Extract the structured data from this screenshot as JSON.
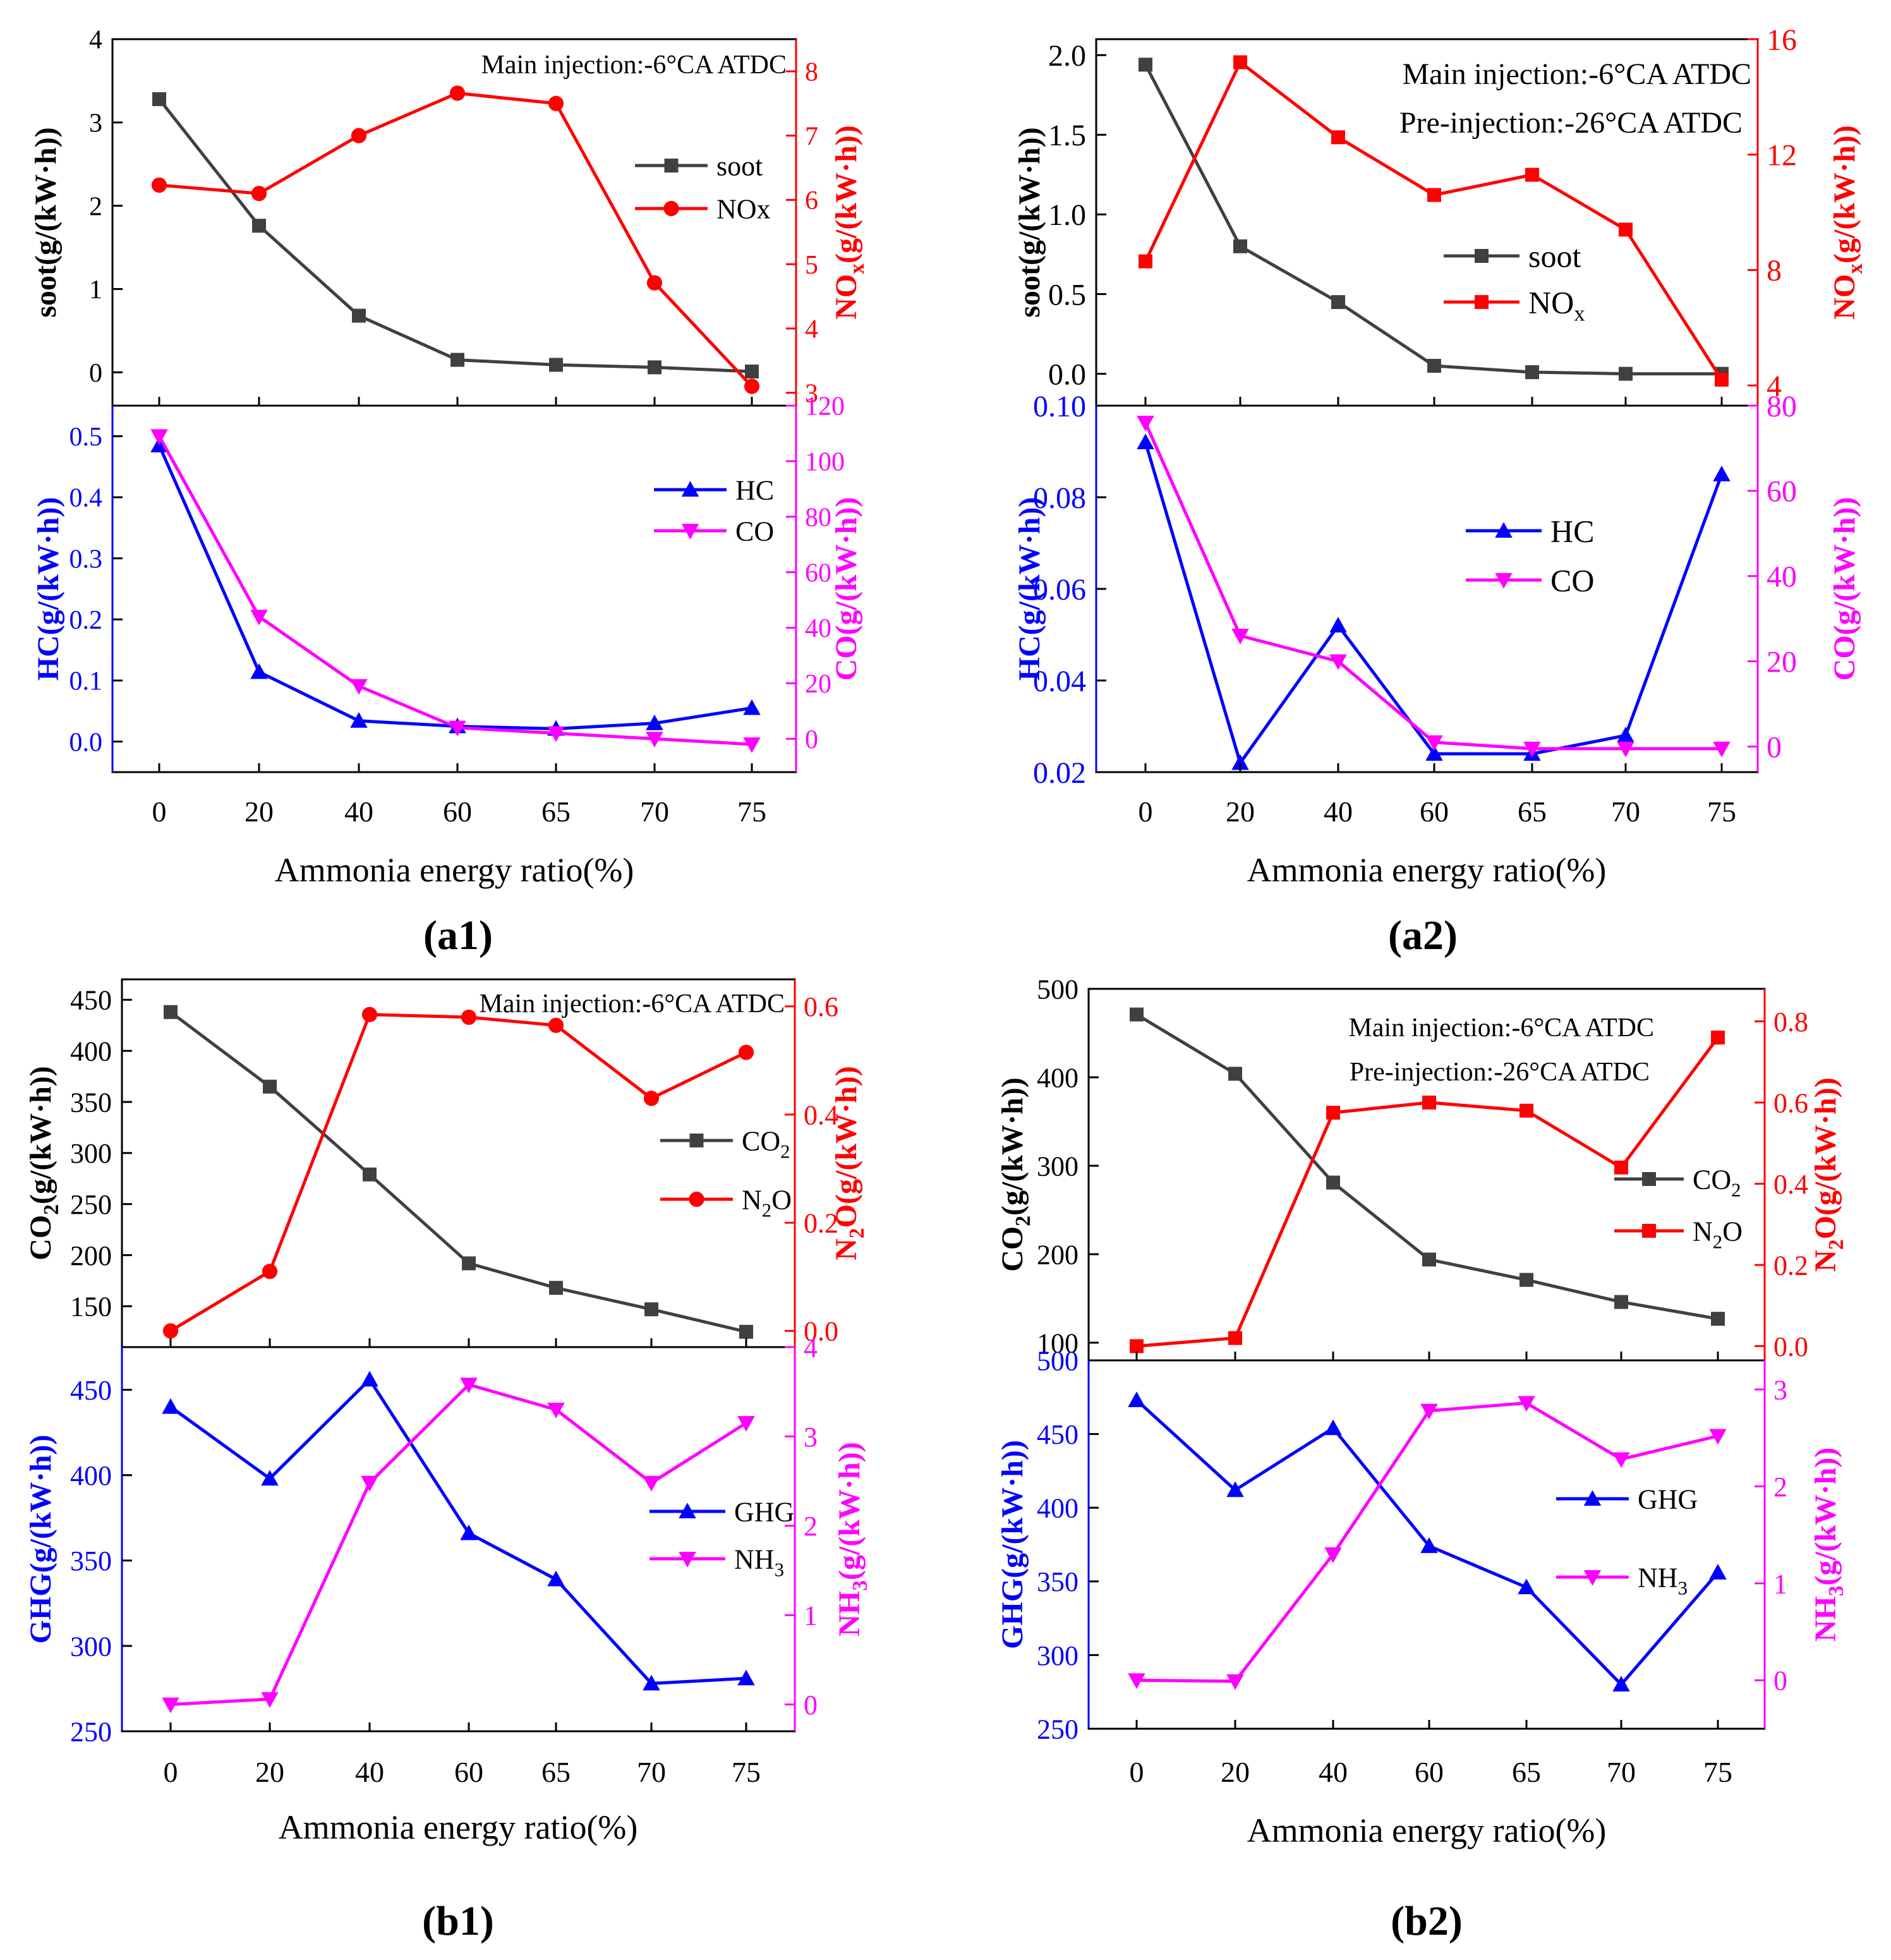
{
  "colors": {
    "soot": "#404040",
    "nox": "#ff0000",
    "hc": "#0000ff",
    "co": "#ff00ff",
    "co2": "#404040",
    "n2o": "#ff0000",
    "ghg": "#0000ff",
    "nh3": "#ff00ff"
  },
  "chart_data": [
    {
      "id": "a1",
      "label": "(a1)",
      "type": "line",
      "xlabel": "Ammonia energy ratio(%)",
      "categories": [
        "0",
        "20",
        "40",
        "60",
        "65",
        "70",
        "75"
      ],
      "annotations": [
        "Main injection:-6°CA ATDC"
      ],
      "panels": [
        {
          "left_axis": {
            "label": "soot(g/(kW·h))",
            "ylim": [
              -0.4,
              4
            ],
            "ticks": [
              0,
              1,
              2,
              3,
              4
            ],
            "color": "#000000"
          },
          "right_axis": {
            "label_main": "NO",
            "label_sub": "x",
            "label_rest": "(g/(kW·h))",
            "ylim": [
              2.8,
              8.5
            ],
            "ticks": [
              3,
              4,
              5,
              6,
              7,
              8
            ],
            "color": "#ff0000"
          },
          "series": [
            {
              "name": "soot",
              "axis": "left",
              "marker": "square",
              "color": "#404040",
              "values": [
                3.28,
                1.76,
                0.68,
                0.15,
                0.09,
                0.06,
                0.01
              ]
            },
            {
              "name": "NOx",
              "axis": "right",
              "marker": "circle",
              "color": "#ff0000",
              "values": [
                6.23,
                6.1,
                7.0,
                7.66,
                7.5,
                4.71,
                3.1
              ]
            }
          ],
          "legend": [
            {
              "text": "soot",
              "sub": ""
            },
            {
              "text": "NOx",
              "sub": ""
            }
          ]
        },
        {
          "left_axis": {
            "label": "HC(g/(kW·h))",
            "ylim": [
              -0.05,
              0.55
            ],
            "ticks": [
              0.0,
              0.1,
              0.2,
              0.3,
              0.4,
              0.5
            ],
            "color": "#0000ff"
          },
          "right_axis": {
            "label_main": "CO(g/(kW·h))",
            "label_sub": "",
            "label_rest": "",
            "ylim": [
              -12,
              120
            ],
            "ticks": [
              0,
              20,
              40,
              60,
              80,
              100,
              120
            ],
            "color": "#ff00ff"
          },
          "series": [
            {
              "name": "HC",
              "axis": "left",
              "marker": "triangle-up",
              "color": "#0000ff",
              "values": [
                0.485,
                0.114,
                0.034,
                0.025,
                0.021,
                0.03,
                0.055
              ]
            },
            {
              "name": "CO",
              "axis": "right",
              "marker": "triangle-down",
              "color": "#ff00ff",
              "values": [
                109,
                44,
                19,
                4,
                2,
                0,
                -2
              ]
            }
          ],
          "legend": [
            {
              "text": "HC",
              "sub": ""
            },
            {
              "text": "CO",
              "sub": ""
            }
          ]
        }
      ]
    },
    {
      "id": "a2",
      "label": "(a2)",
      "type": "line",
      "xlabel": "Ammonia energy ratio(%)",
      "categories": [
        "0",
        "20",
        "40",
        "60",
        "65",
        "70",
        "75"
      ],
      "annotations": [
        "Main injection:-6°CA ATDC",
        "Pre-injection:-26°CA ATDC"
      ],
      "panels": [
        {
          "left_axis": {
            "label": "soot(g/(kW·h))",
            "ylim": [
              -0.2,
              2.1
            ],
            "ticks": [
              0.0,
              0.5,
              1.0,
              1.5,
              2.0
            ],
            "color": "#000000"
          },
          "right_axis": {
            "label_main": "NO",
            "label_sub": "x",
            "label_rest": "(g/(kW·h))",
            "ylim": [
              3.3,
              16
            ],
            "ticks": [
              4,
              8,
              12,
              16
            ],
            "color": "#ff0000"
          },
          "series": [
            {
              "name": "soot",
              "axis": "left",
              "marker": "square",
              "color": "#404040",
              "values": [
                1.94,
                0.8,
                0.45,
                0.05,
                0.01,
                0.0,
                0.0
              ]
            },
            {
              "name": "NOx",
              "axis": "right",
              "marker": "square",
              "color": "#ff0000",
              "values": [
                8.3,
                15.2,
                12.6,
                10.6,
                11.3,
                9.4,
                4.2
              ]
            }
          ],
          "legend": [
            {
              "text": "soot",
              "sub": ""
            },
            {
              "text": "NO",
              "sub": "x"
            }
          ]
        },
        {
          "left_axis": {
            "label": "HC(g/(kW·h))",
            "ylim": [
              0.02,
              0.1
            ],
            "ticks": [
              0.02,
              0.04,
              0.06,
              0.08,
              0.1
            ],
            "color": "#0000ff"
          },
          "right_axis": {
            "label_main": "CO(g/(kW·h))",
            "label_sub": "",
            "label_rest": "",
            "ylim": [
              -6,
              80
            ],
            "ticks": [
              0,
              20,
              40,
              60,
              80
            ],
            "color": "#ff00ff"
          },
          "series": [
            {
              "name": "HC",
              "axis": "left",
              "marker": "triangle-up",
              "color": "#0000ff",
              "values": [
                0.092,
                0.022,
                0.052,
                0.024,
                0.024,
                0.028,
                0.085
              ]
            },
            {
              "name": "CO",
              "axis": "right",
              "marker": "triangle-down",
              "color": "#ff00ff",
              "values": [
                76,
                26,
                20,
                1,
                -0.5,
                -0.5,
                -0.5
              ]
            }
          ],
          "legend": [
            {
              "text": "HC",
              "sub": ""
            },
            {
              "text": "CO",
              "sub": ""
            }
          ]
        }
      ]
    },
    {
      "id": "b1",
      "label": "(b1)",
      "type": "line",
      "xlabel": "Ammonia energy ratio(%)",
      "categories": [
        "0",
        "20",
        "40",
        "60",
        "65",
        "70",
        "75"
      ],
      "annotations": [
        "Main injection:-6°CA ATDC"
      ],
      "panels": [
        {
          "left_axis": {
            "label_main": "CO",
            "label_sub": "2",
            "label_rest": "(g/(kW·h))",
            "ylim": [
              110,
              470
            ],
            "ticks": [
              150,
              200,
              250,
              300,
              350,
              400,
              450
            ],
            "color": "#000000"
          },
          "right_axis": {
            "label_main": "N",
            "label_sub": "2",
            "label_rest": "O(g/(kW·h))",
            "ylim": [
              -0.03,
              0.65
            ],
            "ticks": [
              0.0,
              0.2,
              0.4,
              0.6
            ],
            "color": "#ff0000"
          },
          "series": [
            {
              "name": "CO2",
              "axis": "left",
              "marker": "square",
              "color": "#404040",
              "values": [
                438,
                365,
                279,
                192,
                168,
                147,
                125
              ]
            },
            {
              "name": "N2O",
              "axis": "right",
              "marker": "circle",
              "color": "#ff0000",
              "values": [
                0.0,
                0.11,
                0.585,
                0.58,
                0.565,
                0.43,
                0.515
              ]
            }
          ],
          "legend": [
            {
              "text": "CO",
              "sub": "2"
            },
            {
              "text": "N",
              "sub": "2",
              "after": "O"
            }
          ]
        },
        {
          "left_axis": {
            "label": "GHG(g/(kW·h))",
            "ylim": [
              250,
              475
            ],
            "ticks": [
              250,
              300,
              350,
              400,
              450
            ],
            "color": "#0000ff"
          },
          "right_axis": {
            "label_main": "NH",
            "label_sub": "3",
            "label_rest": "(g/(kW·h))",
            "ylim": [
              -0.3,
              4
            ],
            "ticks": [
              0,
              1,
              2,
              3,
              4
            ],
            "color": "#ff00ff"
          },
          "series": [
            {
              "name": "GHG",
              "axis": "left",
              "marker": "triangle-up",
              "color": "#0000ff",
              "values": [
                440,
                398,
                456,
                366,
                339,
                278,
                281
              ]
            },
            {
              "name": "NH3",
              "axis": "right",
              "marker": "triangle-down",
              "color": "#ff00ff",
              "values": [
                0.0,
                0.06,
                2.48,
                3.58,
                3.3,
                2.48,
                3.15
              ]
            }
          ],
          "legend": [
            {
              "text": "GHG",
              "sub": ""
            },
            {
              "text": "NH",
              "sub": "3"
            }
          ]
        }
      ]
    },
    {
      "id": "b2",
      "label": "(b2)",
      "type": "line",
      "xlabel": "Ammonia energy ratio(%)",
      "categories": [
        "0",
        "20",
        "40",
        "60",
        "65",
        "70",
        "75"
      ],
      "annotations": [
        "Main injection:-6°CA ATDC",
        "Pre-injection:-26°CA ATDC"
      ],
      "panels": [
        {
          "left_axis": {
            "label_main": "CO",
            "label_sub": "2",
            "label_rest": "(g/(kW·h))",
            "ylim": [
              80,
              500
            ],
            "ticks": [
              100,
              200,
              300,
              400,
              500
            ],
            "color": "#000000"
          },
          "right_axis": {
            "label_main": "N",
            "label_sub": "2",
            "label_rest": "O(g/(kW·h))",
            "ylim": [
              -0.035,
              0.88
            ],
            "ticks": [
              0.0,
              0.2,
              0.4,
              0.6,
              0.8
            ],
            "color": "#ff0000"
          },
          "series": [
            {
              "name": "CO2",
              "axis": "left",
              "marker": "square",
              "color": "#404040",
              "values": [
                471,
                404,
                281,
                194,
                171,
                146,
                127
              ]
            },
            {
              "name": "N2O",
              "axis": "right",
              "marker": "square",
              "color": "#ff0000",
              "values": [
                0.0,
                0.02,
                0.575,
                0.6,
                0.58,
                0.44,
                0.76
              ]
            }
          ],
          "legend": [
            {
              "text": "CO",
              "sub": "2"
            },
            {
              "text": "N",
              "sub": "2",
              "after": "O"
            }
          ]
        },
        {
          "left_axis": {
            "label": "GHG(g/(kW·h))",
            "ylim": [
              250,
              500
            ],
            "ticks": [
              250,
              300,
              350,
              400,
              450,
              500
            ],
            "color": "#0000ff"
          },
          "right_axis": {
            "label_main": "NH",
            "label_sub": "3",
            "label_rest": "(g/(kW·h))",
            "ylim": [
              -0.5,
              3.3
            ],
            "ticks": [
              0,
              1,
              2,
              3
            ],
            "color": "#ff00ff"
          },
          "series": [
            {
              "name": "GHG",
              "axis": "left",
              "marker": "triangle-up",
              "color": "#0000ff",
              "values": [
                473,
                412,
                454,
                374,
                346,
                280,
                356
              ]
            },
            {
              "name": "NH3",
              "axis": "right",
              "marker": "triangle-down",
              "color": "#ff00ff",
              "values": [
                0.0,
                -0.01,
                1.3,
                2.78,
                2.86,
                2.28,
                2.52
              ]
            }
          ],
          "legend": [
            {
              "text": "GHG",
              "sub": ""
            },
            {
              "text": "NH",
              "sub": "3"
            }
          ]
        }
      ]
    }
  ]
}
